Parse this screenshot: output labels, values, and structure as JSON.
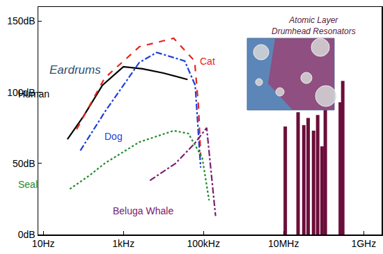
{
  "chart_data": {
    "type": "line",
    "annotations": [
      "Eardrums"
    ],
    "log": "x",
    "grid": false,
    "xlim": [
      7.5,
      2800000000
    ],
    "xticks": [
      {
        "value": 10,
        "label": "10Hz"
      },
      {
        "value": 1000,
        "label": "1kHz"
      },
      {
        "value": 100000,
        "label": "100kHz"
      },
      {
        "value": 10000000,
        "label": "10MHz"
      },
      {
        "value": 1000000000,
        "label": "1GHz"
      }
    ],
    "ylim": [
      0,
      160
    ],
    "yticks": [
      {
        "value": 0,
        "label": "0dB"
      },
      {
        "value": 50,
        "label": "50dB"
      },
      {
        "value": 100,
        "label": "100dB"
      },
      {
        "value": 150,
        "label": "150dB"
      }
    ],
    "series": [
      {
        "name": "Human",
        "type": "line",
        "color": "#000000",
        "line_style": "solid",
        "x": [
          40,
          100,
          300,
          1000,
          3000,
          10000,
          40000
        ],
        "values": [
          67,
          83,
          105,
          118,
          116.5,
          113.5,
          109
        ]
      },
      {
        "name": "Cat",
        "type": "line",
        "color": "#e8221c",
        "line_style": "dash",
        "x": [
          68,
          340,
          2500,
          18000,
          60000,
          75000,
          85000
        ],
        "values": [
          74,
          110,
          132,
          138,
          122,
          90,
          55
        ]
      },
      {
        "name": "Dog",
        "type": "line",
        "color": "#1f3fd6",
        "line_style": "dashdot",
        "x": [
          84,
          340,
          2500,
          6800,
          34000,
          62000,
          85000
        ],
        "values": [
          59,
          86,
          121,
          128,
          122,
          105,
          47
        ]
      },
      {
        "name": "Seal",
        "type": "line",
        "color": "#1e8c2b",
        "line_style": "dot",
        "x": [
          46,
          150,
          340,
          2500,
          18000,
          42000,
          93000,
          138000
        ],
        "values": [
          32,
          42,
          50,
          65,
          73,
          71,
          54,
          24
        ]
      },
      {
        "name": "Beluga Whale",
        "type": "line",
        "color": "#7a2070",
        "line_style": "dashdot",
        "x": [
          4600,
          20000,
          60000,
          120000,
          200000
        ],
        "values": [
          38,
          50,
          64,
          75,
          13
        ]
      },
      {
        "name": "Atomic Layer\nDrumhead Resonators",
        "type": "bar",
        "color": "#6b0f3a",
        "x": [
          11000000,
          23000000,
          32000000,
          41000000,
          56000000,
          71000000,
          91000000,
          110000000,
          260000000,
          300000000
        ],
        "values": [
          76,
          86,
          77,
          82,
          73,
          84,
          62,
          88,
          93,
          108
        ]
      }
    ]
  }
}
